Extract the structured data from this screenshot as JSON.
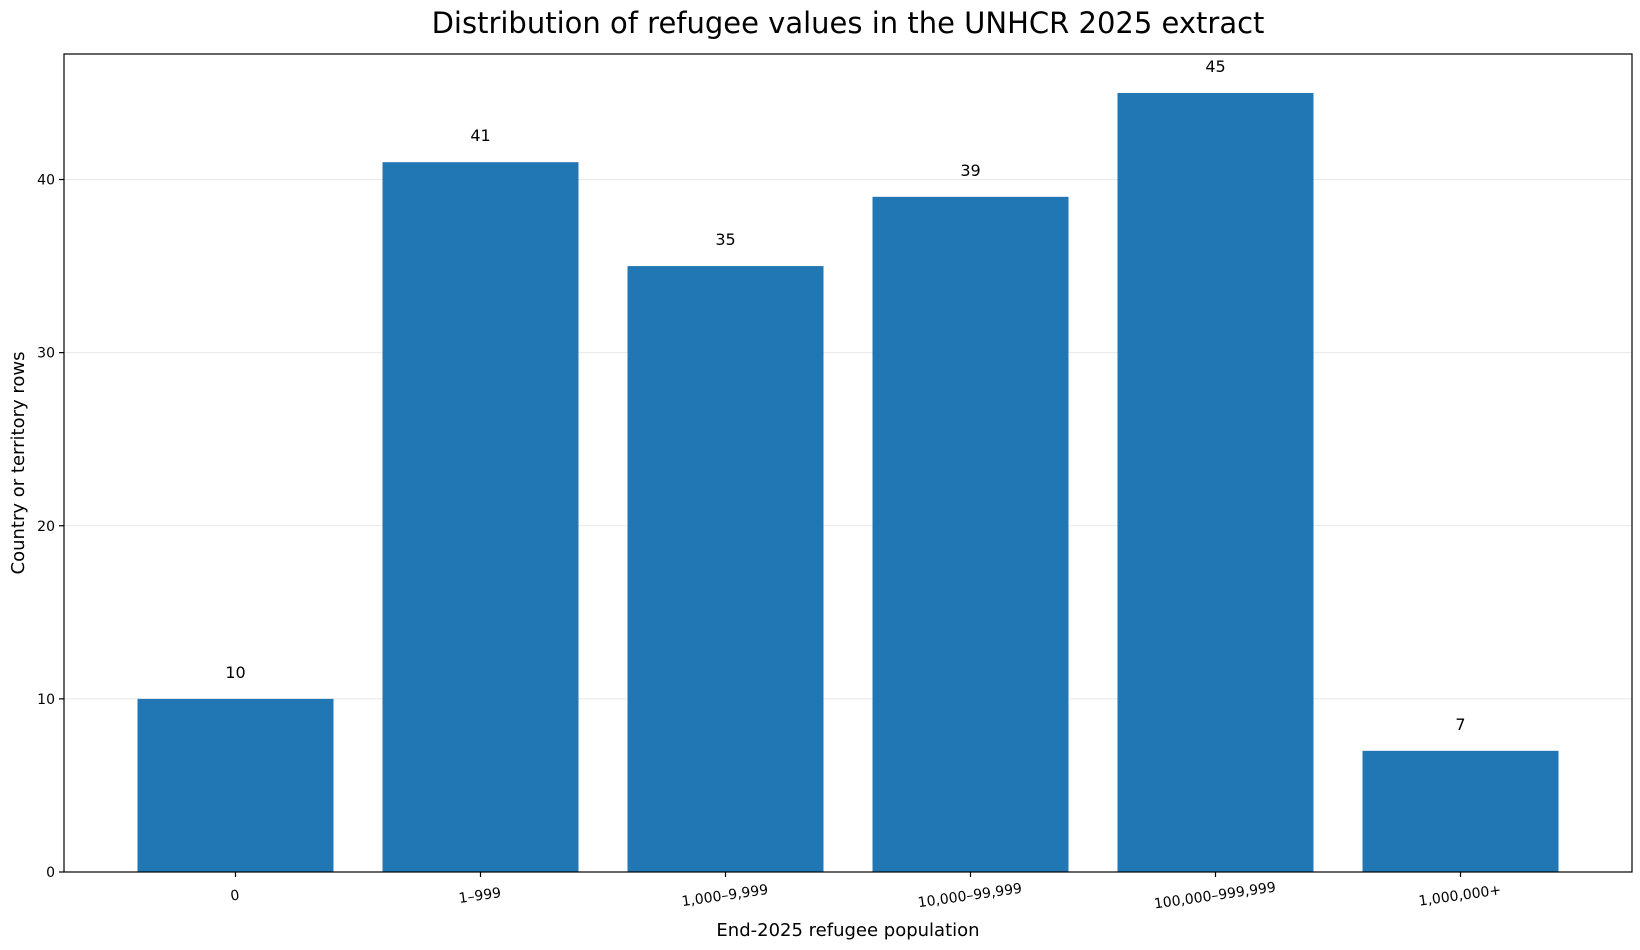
{
  "chart_data": {
    "type": "bar",
    "title": "Distribution of refugee values in the UNHCR 2025 extract",
    "xlabel": "End-2025 refugee population",
    "ylabel": "Country or territory rows",
    "categories": [
      "0",
      "1–999",
      "1,000–9,999",
      "10,000–99,999",
      "100,000–999,999",
      "1,000,000+"
    ],
    "values": [
      10,
      41,
      35,
      39,
      45,
      7
    ],
    "data_labels": [
      "10",
      "41",
      "35",
      "39",
      "45",
      "7"
    ],
    "ylim": [
      0,
      47.25
    ],
    "yticks": [
      0,
      10,
      20,
      30,
      40
    ],
    "ytick_labels": [
      "0",
      "10",
      "20",
      "30",
      "40"
    ],
    "grid": "y-axis only, light",
    "bar_color": "#2077b4",
    "grid_color": "#e8e8e8",
    "legend": "none"
  }
}
